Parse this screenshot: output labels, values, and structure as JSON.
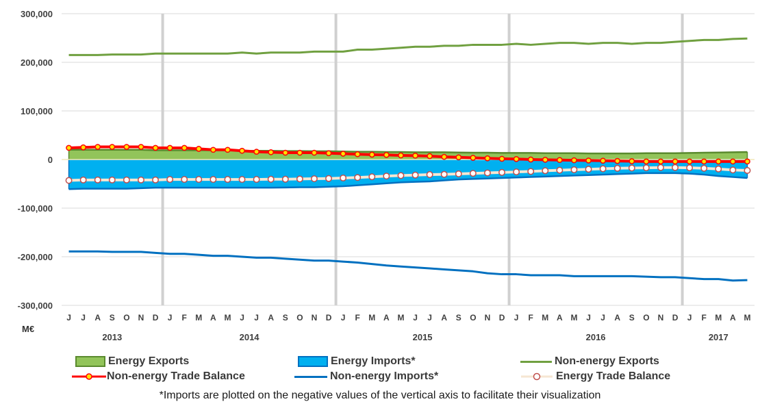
{
  "chart_data": {
    "type": "line",
    "unit_label": "M€",
    "ylim": [
      -300000,
      300000
    ],
    "yticks": [
      300000,
      200000,
      100000,
      0,
      -100000,
      -200000,
      -300000
    ],
    "ytick_labels": [
      "300,000",
      "200,000",
      "100,000",
      "0",
      "-100,000",
      "-200,000",
      "-300,000"
    ],
    "x_months": [
      "J",
      "J",
      "A",
      "S",
      "O",
      "N",
      "D",
      "J",
      "F",
      "M",
      "A",
      "M",
      "J",
      "J",
      "A",
      "S",
      "O",
      "N",
      "D",
      "J",
      "F",
      "M",
      "A",
      "M",
      "J",
      "J",
      "A",
      "S",
      "O",
      "N",
      "D",
      "J",
      "F",
      "M",
      "A",
      "M",
      "J",
      "J",
      "A",
      "S",
      "O",
      "N",
      "D",
      "J",
      "F",
      "M",
      "A",
      "M"
    ],
    "x_years": [
      {
        "label": "2013",
        "start": 0,
        "end": 6
      },
      {
        "label": "2014",
        "start": 7,
        "end": 18
      },
      {
        "label": "2015",
        "start": 19,
        "end": 30
      },
      {
        "label": "2016",
        "start": 31,
        "end": 42
      },
      {
        "label": "2017",
        "start": 43,
        "end": 47
      }
    ],
    "year_separators_after": [
      6,
      18,
      30,
      42
    ],
    "grid": "horizontal",
    "series": [
      {
        "name": "Energy Exports",
        "kind": "area",
        "color": "#92c45a",
        "edge": "#5a8a2e",
        "values": [
          20000,
          20000,
          20000,
          20000,
          20000,
          20000,
          19000,
          19000,
          19000,
          19000,
          19000,
          19000,
          18000,
          18000,
          18000,
          17500,
          17500,
          17000,
          17000,
          16500,
          16000,
          16000,
          15500,
          15500,
          15000,
          15000,
          15000,
          14500,
          14000,
          14000,
          13500,
          13500,
          13500,
          13000,
          13000,
          13000,
          12500,
          12500,
          12500,
          12500,
          13000,
          13000,
          13000,
          13500,
          14000,
          14500,
          15000,
          15500
        ]
      },
      {
        "name": "Energy Imports*",
        "kind": "area",
        "color": "#00b0f0",
        "edge": "#0070c0",
        "values": [
          -61000,
          -60000,
          -60000,
          -60000,
          -60000,
          -59000,
          -58000,
          -58000,
          -58000,
          -58000,
          -58000,
          -58000,
          -58000,
          -58000,
          -58000,
          -57500,
          -57000,
          -57000,
          -56000,
          -55000,
          -53000,
          -51000,
          -49000,
          -47000,
          -46000,
          -45000,
          -43000,
          -41000,
          -40000,
          -39000,
          -38000,
          -37000,
          -36000,
          -35000,
          -34000,
          -33000,
          -32000,
          -31000,
          -30000,
          -29000,
          -28000,
          -28000,
          -28000,
          -29000,
          -31000,
          -34000,
          -36000,
          -38000
        ]
      },
      {
        "name": "Non-energy Exports",
        "kind": "line",
        "color": "#70a040",
        "values": [
          215000,
          215000,
          215000,
          216000,
          216000,
          216000,
          218000,
          218000,
          218000,
          218000,
          218000,
          218000,
          220000,
          218000,
          220000,
          220000,
          220000,
          222000,
          222000,
          222000,
          226000,
          226000,
          228000,
          230000,
          232000,
          232000,
          234000,
          234000,
          236000,
          236000,
          236000,
          238000,
          236000,
          238000,
          240000,
          240000,
          238000,
          240000,
          240000,
          238000,
          240000,
          240000,
          242000,
          244000,
          246000,
          246000,
          248000,
          249000
        ]
      },
      {
        "name": "Non-energy Imports*",
        "kind": "line",
        "color": "#0070c0",
        "values": [
          -189000,
          -189000,
          -189000,
          -190000,
          -190000,
          -190000,
          -192000,
          -194000,
          -194000,
          -196000,
          -198000,
          -198000,
          -200000,
          -202000,
          -202000,
          -204000,
          -206000,
          -208000,
          -208000,
          -210000,
          -212000,
          -215000,
          -218000,
          -220000,
          -222000,
          -224000,
          -226000,
          -228000,
          -230000,
          -234000,
          -236000,
          -236000,
          -238000,
          -238000,
          -238000,
          -240000,
          -240000,
          -240000,
          -240000,
          -240000,
          -241000,
          -242000,
          -242000,
          -244000,
          -246000,
          -246000,
          -249000,
          -248000
        ]
      },
      {
        "name": "Non-energy Trade Balance",
        "kind": "line-markers",
        "color": "#ff0000",
        "marker": "#ffe000",
        "values": [
          24000,
          25000,
          26000,
          26000,
          26000,
          26000,
          24000,
          24000,
          24000,
          22000,
          20000,
          20000,
          18000,
          16000,
          15000,
          14000,
          14000,
          14000,
          13000,
          12000,
          11000,
          10000,
          9500,
          8500,
          8000,
          7000,
          5500,
          4500,
          3500,
          2500,
          1500,
          1000,
          0,
          -500,
          -1000,
          -1500,
          -2000,
          -2500,
          -3000,
          -3500,
          -4000,
          -4000,
          -4000,
          -4000,
          -4000,
          -4000,
          -4000,
          -4000
        ]
      },
      {
        "name": "Energy Trade Balance",
        "kind": "line-markers",
        "color": "#f6e6d2",
        "marker": "#ffffff",
        "marker_edge": "#c0504d",
        "values": [
          -43000,
          -42000,
          -42000,
          -42000,
          -42000,
          -42000,
          -42000,
          -41000,
          -41000,
          -41000,
          -41000,
          -41000,
          -41000,
          -41000,
          -40500,
          -40500,
          -40000,
          -39500,
          -39000,
          -38000,
          -37000,
          -35500,
          -34000,
          -33000,
          -32000,
          -31000,
          -30500,
          -29500,
          -28500,
          -27500,
          -26500,
          -25500,
          -24500,
          -23000,
          -22000,
          -21000,
          -20000,
          -19000,
          -18000,
          -17500,
          -17000,
          -16500,
          -16500,
          -17000,
          -18000,
          -19500,
          -21500,
          -22500
        ]
      }
    ]
  },
  "legend": [
    {
      "label": "Energy Exports",
      "swatch": "area-green"
    },
    {
      "label": "Energy Imports*",
      "swatch": "area-blue"
    },
    {
      "label": "Non-energy Exports",
      "swatch": "line-green"
    },
    {
      "label": "Non-energy Trade Balance",
      "swatch": "line-red-markers"
    },
    {
      "label": "Non-energy Imports*",
      "swatch": "line-blue"
    },
    {
      "label": "Energy Trade Balance",
      "swatch": "line-cream-markers"
    }
  ],
  "footnote": "*Imports are plotted on the negative values of the vertical axis to facilitate their visualization"
}
